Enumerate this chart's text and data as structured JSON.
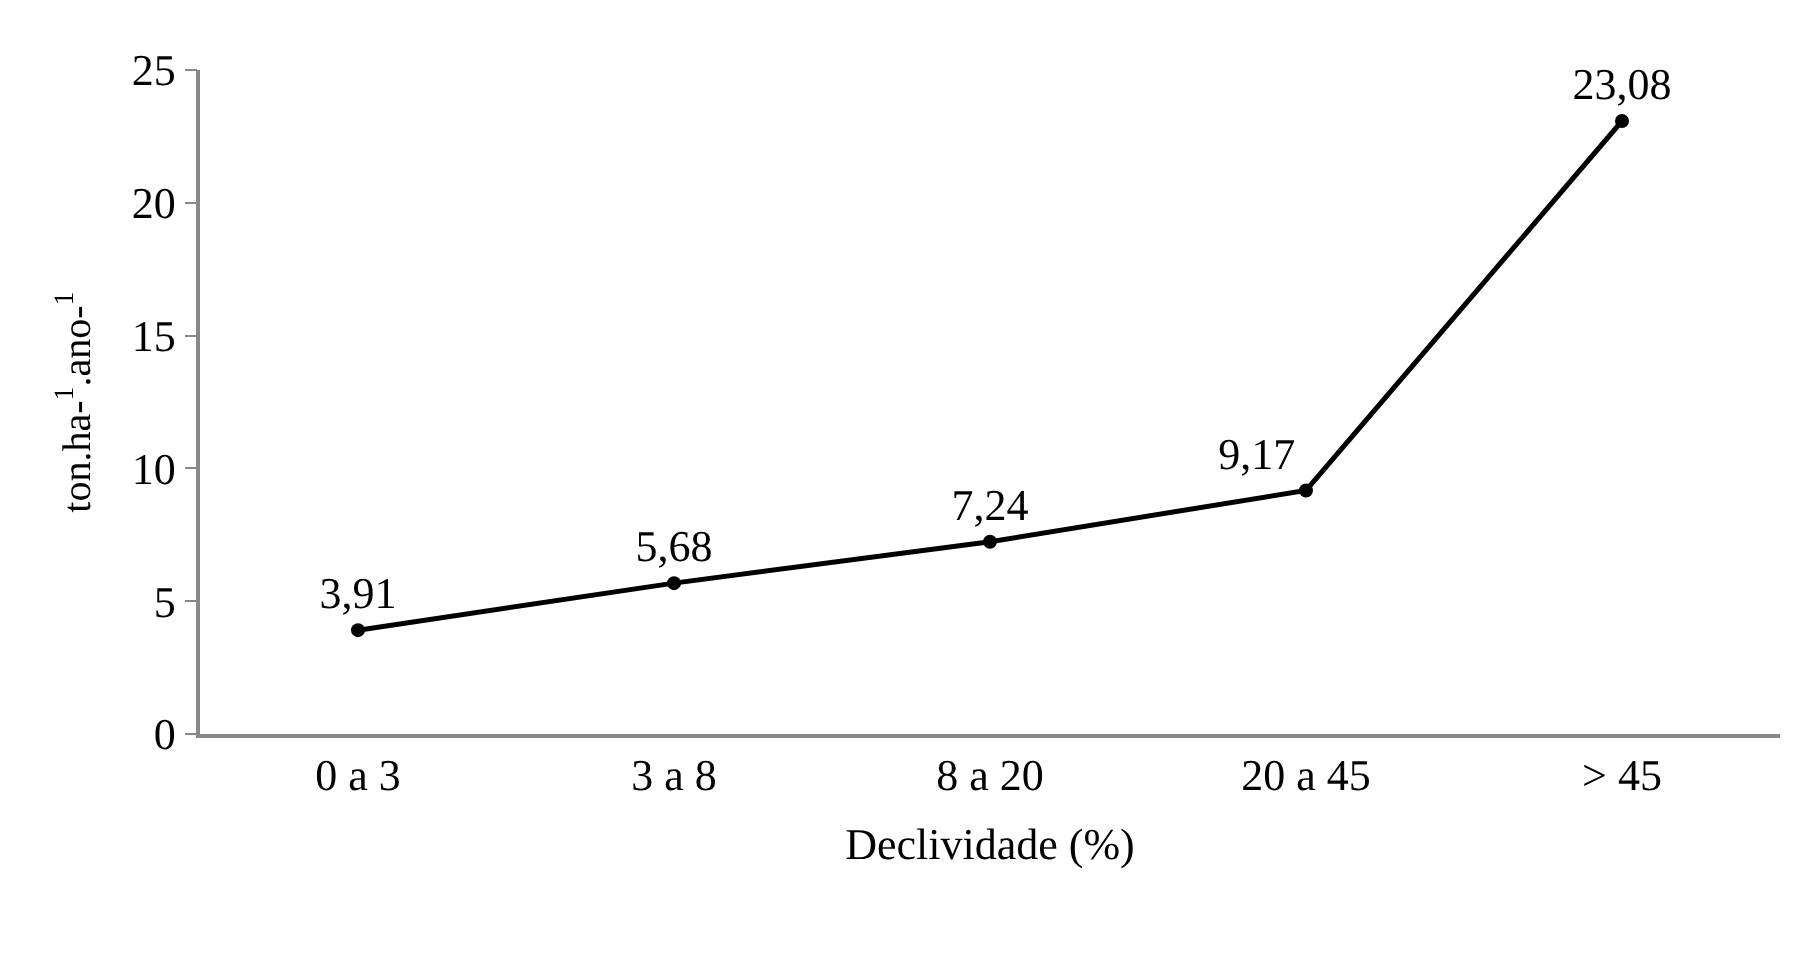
{
  "chart_data": {
    "type": "line",
    "xlabel": "Declividade (%)",
    "ylabel": "ton.ha-$^{1}$.ano-$^{1}$",
    "categories": [
      "0 a 3",
      "3 a 8",
      "8 a 20",
      "20 a 45",
      "> 45"
    ],
    "series": [
      {
        "color": "#000000",
        "values": [
          3.91,
          5.68,
          7.24,
          9.17,
          23.08
        ],
        "value_labels": [
          "3,91",
          "5,68",
          "7,24",
          "9,17",
          "23,08"
        ]
      }
    ],
    "ylim": [
      0,
      25
    ],
    "yticks": [
      0,
      5,
      10,
      15,
      20,
      25
    ],
    "legend": false,
    "marker": "circle",
    "line_style": "solid"
  }
}
